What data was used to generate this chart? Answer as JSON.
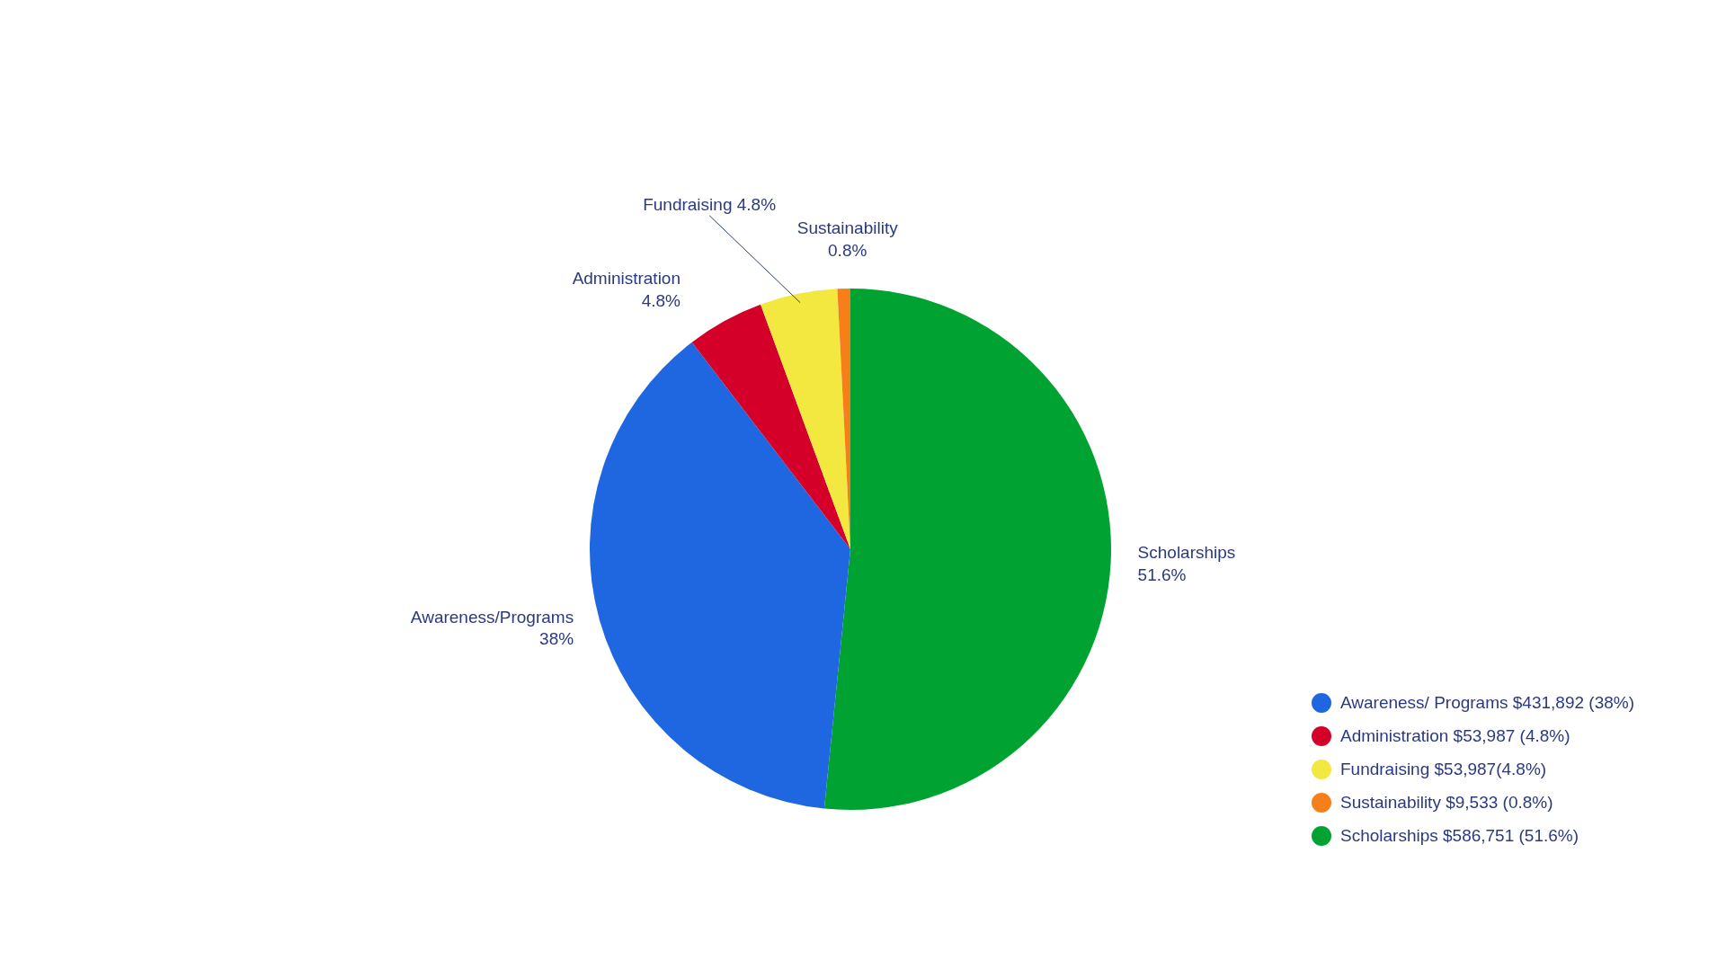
{
  "chart_data": {
    "type": "pie",
    "categories": [
      "Scholarships",
      "Awareness/Programs",
      "Administration",
      "Fundraising",
      "Sustainability"
    ],
    "values": [
      51.6,
      38,
      4.8,
      4.8,
      0.8
    ],
    "value_labels": [
      "51.6%",
      "38%",
      "4.8%",
      "4.8%",
      "0.8%"
    ],
    "colors": [
      "#00a331",
      "#1f67e0",
      "#d5002a",
      "#f2e840",
      "#f77f1a"
    ],
    "annotations": [
      "Scholarships $586,751 (51.6%)",
      "Awareness/ Programs $431,892 (38%)",
      "Administration $53,987 (4.8%)",
      "Fundraising $53,987(4.8%)",
      "Sustainability $9,533 (0.8%)"
    ]
  }
}
